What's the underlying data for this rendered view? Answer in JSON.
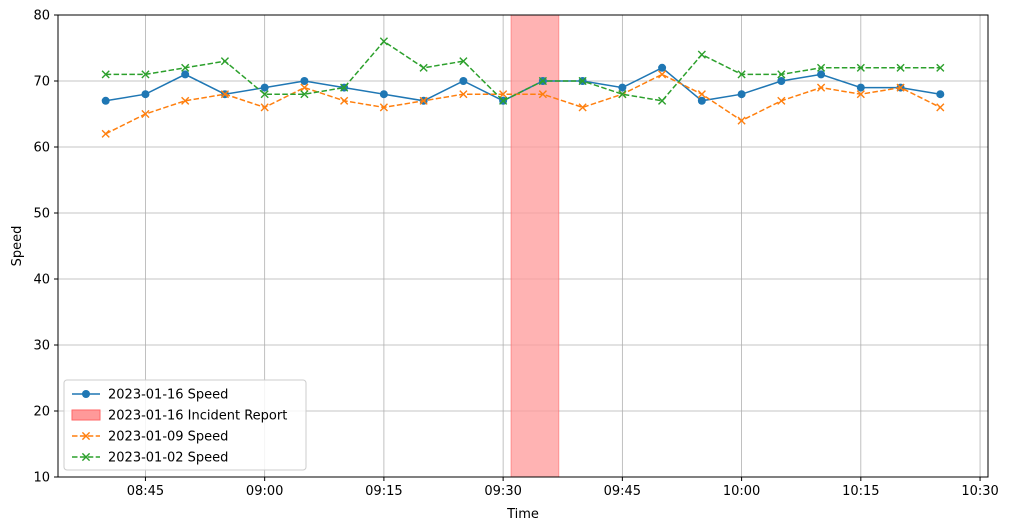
{
  "chart_data": {
    "type": "line",
    "title": "",
    "xlabel": "Time",
    "ylabel": "Speed",
    "xlim": [
      "08:34",
      "10:31"
    ],
    "ylim": [
      10,
      80
    ],
    "grid": true,
    "legend_position": "lower-left",
    "x_ticks": [
      "08:45",
      "09:00",
      "09:15",
      "09:30",
      "09:45",
      "10:00",
      "10:15",
      "10:30"
    ],
    "y_ticks": [
      10,
      20,
      30,
      40,
      50,
      60,
      70,
      80
    ],
    "x": [
      "08:40",
      "08:45",
      "08:50",
      "08:55",
      "09:00",
      "09:05",
      "09:10",
      "09:15",
      "09:20",
      "09:25",
      "09:30",
      "09:35",
      "09:40",
      "09:45",
      "09:50",
      "09:55",
      "10:00",
      "10:05",
      "10:10",
      "10:15",
      "10:20",
      "10:25"
    ],
    "series": [
      {
        "name": "2023-01-16 Speed",
        "color": "#1f77b4",
        "linestyle": "solid",
        "marker": "circle",
        "values": [
          67,
          68,
          71,
          68,
          69,
          70,
          69,
          68,
          67,
          70,
          67,
          70,
          70,
          69,
          72,
          67,
          68,
          70,
          71,
          69,
          69,
          68
        ]
      },
      {
        "name": "2023-01-09 Speed",
        "color": "#ff7f0e",
        "linestyle": "dashed",
        "marker": "x",
        "values": [
          62,
          65,
          67,
          68,
          66,
          69,
          67,
          66,
          67,
          68,
          68,
          68,
          66,
          68,
          71,
          68,
          64,
          67,
          69,
          68,
          69,
          66
        ]
      },
      {
        "name": "2023-01-02 Speed",
        "color": "#2ca02c",
        "linestyle": "dashed",
        "marker": "x",
        "values": [
          71,
          71,
          72,
          73,
          68,
          68,
          69,
          76,
          72,
          73,
          67,
          70,
          70,
          68,
          67,
          74,
          71,
          71,
          72,
          72,
          72,
          72
        ]
      }
    ],
    "shaded_regions": [
      {
        "name": "2023-01-16 Incident Report",
        "start": "09:31",
        "end": "09:37",
        "color": "#ff9999"
      }
    ],
    "legend_entries": [
      {
        "label": "2023-01-16 Speed",
        "kind": "line",
        "series": 0
      },
      {
        "label": "2023-01-16 Incident Report",
        "kind": "patch",
        "region": 0
      },
      {
        "label": "2023-01-09 Speed",
        "kind": "line",
        "series": 1
      },
      {
        "label": "2023-01-02 Speed",
        "kind": "line",
        "series": 2
      }
    ]
  }
}
